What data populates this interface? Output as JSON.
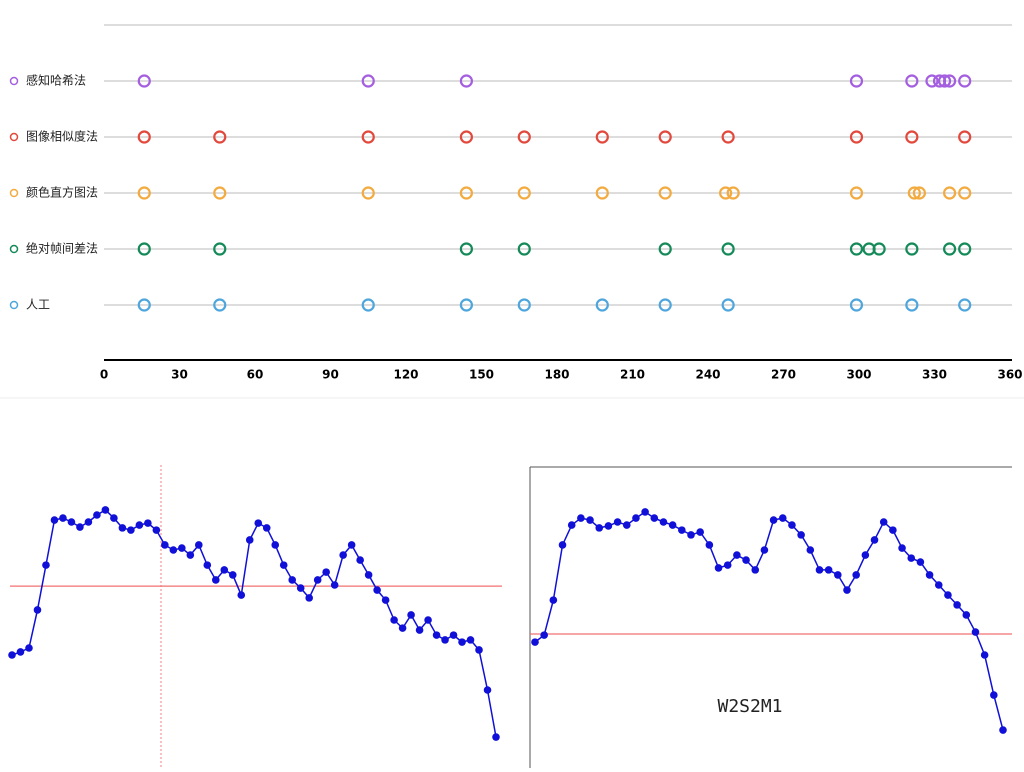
{
  "chart_data": [
    {
      "type": "strip",
      "xlim": [
        0,
        360
      ],
      "xticks": [
        0,
        30,
        60,
        90,
        120,
        150,
        180,
        210,
        240,
        270,
        300,
        330,
        360
      ],
      "series": [
        {
          "name": "感知哈希法",
          "color": "#a45ee0",
          "values": [
            16,
            105,
            144,
            299,
            321,
            329,
            332,
            334,
            336,
            342
          ]
        },
        {
          "name": "图像相似度法",
          "color": "#e2483c",
          "values": [
            16,
            46,
            105,
            144,
            167,
            198,
            223,
            248,
            299,
            321,
            342
          ]
        },
        {
          "name": "颜色直方图法",
          "color": "#f3aa3e",
          "values": [
            16,
            46,
            105,
            144,
            167,
            198,
            223,
            247,
            250,
            299,
            322,
            324,
            336,
            342
          ]
        },
        {
          "name": "绝对帧间差法",
          "color": "#148a58",
          "values": [
            16,
            46,
            144,
            167,
            223,
            248,
            299,
            304,
            308,
            321,
            336,
            342
          ]
        },
        {
          "name": "人工",
          "color": "#4ea6dd",
          "values": [
            16,
            46,
            105,
            144,
            167,
            198,
            223,
            248,
            299,
            321,
            342
          ]
        }
      ]
    },
    {
      "type": "line",
      "color": "#1010d8",
      "ylim": [
        0,
        100
      ],
      "threshold": 62.1,
      "values": [
        37.5,
        38.6,
        40,
        53.6,
        69.6,
        85.7,
        86.4,
        85,
        83.2,
        85,
        87.5,
        89.3,
        86.4,
        82.9,
        82.1,
        83.9,
        84.6,
        82.1,
        76.8,
        75,
        75.7,
        73.2,
        76.8,
        69.6,
        64.3,
        67.9,
        66.1,
        58.9,
        78.6,
        84.6,
        82.9,
        76.8,
        69.6,
        64.3,
        61.4,
        57.9,
        64.3,
        67.1,
        62.5,
        73.2,
        76.8,
        71.4,
        66.1,
        60.7,
        57.1,
        50,
        47.1,
        51.8,
        46.4,
        50,
        44.6,
        42.9,
        44.6,
        42.1,
        42.9,
        39.3,
        25,
        8.2
      ]
    },
    {
      "type": "line",
      "color": "#1010d8",
      "ylim": [
        0,
        100
      ],
      "threshold": 45,
      "label": "W2S2M1",
      "values": [
        42.1,
        44.6,
        57.1,
        76.8,
        83.9,
        86.4,
        85.7,
        82.9,
        83.6,
        85,
        83.9,
        86.4,
        88.6,
        86.4,
        85,
        83.9,
        82.1,
        80.4,
        81.4,
        76.8,
        68.6,
        69.6,
        73.2,
        71.4,
        67.9,
        75,
        85.7,
        86.4,
        83.9,
        80.4,
        75,
        67.9,
        67.9,
        66.1,
        60.7,
        66.1,
        73.2,
        78.6,
        85,
        82.1,
        75.7,
        72.1,
        70.7,
        66.1,
        62.5,
        58.9,
        55.4,
        51.8,
        45.7,
        37.5,
        23.2,
        10.7
      ]
    }
  ]
}
